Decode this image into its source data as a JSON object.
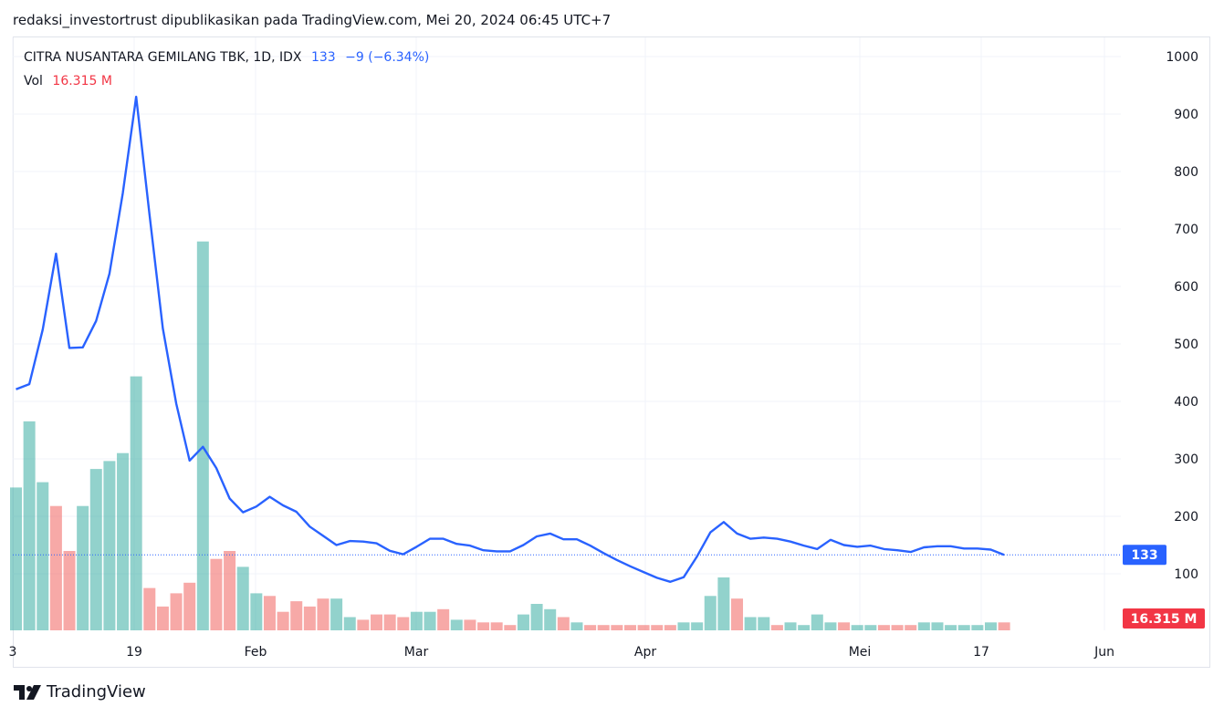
{
  "caption": "redaksi_investortrust dipublikasikan pada TradingView.com, Mei 20, 2024 06:45 UTC+7",
  "legend": {
    "symbol": "CITRA NUSANTARA GEMILANG TBK, 1D, IDX",
    "last": "133",
    "change": "−9 (−6.34%)",
    "vol_label": "Vol",
    "vol_value": "16.315 M"
  },
  "brand": {
    "name": "TradingView",
    "icon": "tradingview-logo-icon"
  },
  "colors": {
    "price_line": "#2962ff",
    "vol_up": "#26a69a",
    "vol_down": "#ef5350",
    "price_badge": "#2962ff",
    "vol_badge": "#f23645"
  },
  "chart_data": {
    "type": "line",
    "title": "CITRA NUSANTARA GEMILANG TBK, 1D, IDX",
    "x_tick_labels": [
      "3",
      "19",
      "Feb",
      "Mar",
      "Apr",
      "Mei",
      "17",
      "Jun"
    ],
    "y_ticks": [
      100,
      200,
      300,
      400,
      500,
      600,
      700,
      800,
      900,
      1000
    ],
    "ylim": [
      0,
      1000
    ],
    "grid": true,
    "current_price_label": "133",
    "current_volume_label": "16.315 M",
    "series": [
      {
        "kind": "price",
        "values": [
          421,
          430,
          525,
          657,
          493,
          494,
          540,
          622,
          762,
          930,
          725,
          527,
          396,
          297,
          321,
          284,
          231,
          207,
          217,
          234,
          219,
          208,
          182,
          166,
          150,
          157,
          156,
          153,
          140,
          134,
          147,
          161,
          161,
          152,
          149,
          141,
          139,
          139,
          150,
          165,
          170,
          160,
          160,
          149,
          136,
          124,
          113,
          103,
          93,
          86,
          94,
          130,
          172,
          190,
          170,
          161,
          163,
          161,
          156,
          149,
          143,
          159,
          150,
          147,
          149,
          143,
          141,
          138,
          146,
          148,
          148,
          144,
          144,
          142,
          133
        ]
      },
      {
        "kind": "volume",
        "values": [
          54,
          79,
          56,
          47,
          30,
          47,
          61,
          64,
          67,
          96,
          16,
          9,
          14,
          18,
          147,
          27,
          30,
          24,
          14,
          13,
          7,
          11,
          9,
          12,
          12,
          5,
          4,
          6,
          6,
          5,
          7,
          7,
          8,
          4,
          4,
          3,
          3,
          2,
          6,
          10,
          8,
          5,
          3,
          2,
          2,
          2,
          2,
          2,
          2,
          2,
          3,
          3,
          13,
          20,
          12,
          5,
          5,
          2,
          3,
          2,
          6,
          3,
          3,
          2,
          2,
          2,
          2,
          2,
          3,
          3,
          2,
          2,
          2,
          3,
          3
        ],
        "directions": [
          "up",
          "up",
          "up",
          "down",
          "down",
          "up",
          "up",
          "up",
          "up",
          "up",
          "down",
          "down",
          "down",
          "down",
          "up",
          "down",
          "down",
          "up",
          "up",
          "down",
          "down",
          "down",
          "down",
          "down",
          "up",
          "up",
          "down",
          "down",
          "down",
          "down",
          "up",
          "up",
          "down",
          "up",
          "down",
          "down",
          "down",
          "down",
          "up",
          "up",
          "up",
          "down",
          "up",
          "down",
          "down",
          "down",
          "down",
          "down",
          "down",
          "down",
          "up",
          "up",
          "up",
          "up",
          "down",
          "up",
          "up",
          "down",
          "up",
          "up",
          "up",
          "up",
          "down",
          "up",
          "up",
          "down",
          "down",
          "down",
          "up",
          "up",
          "up",
          "up",
          "up",
          "up",
          "down"
        ]
      }
    ]
  }
}
